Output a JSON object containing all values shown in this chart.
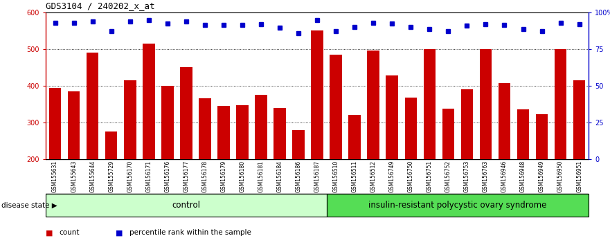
{
  "title": "GDS3104 / 240202_x_at",
  "samples": [
    "GSM155631",
    "GSM155643",
    "GSM155644",
    "GSM155729",
    "GSM156170",
    "GSM156171",
    "GSM156176",
    "GSM156177",
    "GSM156178",
    "GSM156179",
    "GSM156180",
    "GSM156181",
    "GSM156184",
    "GSM156186",
    "GSM156187",
    "GSM156510",
    "GSM156511",
    "GSM156512",
    "GSM156749",
    "GSM156750",
    "GSM156751",
    "GSM156752",
    "GSM156753",
    "GSM156763",
    "GSM156946",
    "GSM156948",
    "GSM156949",
    "GSM156950",
    "GSM156951"
  ],
  "bar_values": [
    395,
    385,
    490,
    275,
    415,
    515,
    400,
    450,
    365,
    345,
    348,
    375,
    340,
    280,
    550,
    485,
    320,
    495,
    428,
    368,
    500,
    338,
    390,
    500,
    408,
    335,
    322,
    500,
    415
  ],
  "dot_values": [
    572,
    572,
    575,
    548,
    575,
    578,
    570,
    575,
    565,
    565,
    565,
    568,
    558,
    542,
    578,
    548,
    560,
    572,
    570,
    560,
    555,
    548,
    563,
    568,
    565,
    555,
    548,
    572,
    568
  ],
  "bar_color": "#cc0000",
  "dot_color": "#0000cc",
  "ylim_left": [
    200,
    600
  ],
  "ylim_right": [
    0,
    100
  ],
  "yticks_left": [
    200,
    300,
    400,
    500,
    600
  ],
  "yticks_right": [
    0,
    25,
    50,
    75,
    100
  ],
  "ytick_labels_right": [
    "0",
    "25",
    "50",
    "75",
    "100%"
  ],
  "grid_values": [
    300,
    400,
    500
  ],
  "control_count": 15,
  "disease_label": "insulin-resistant polycystic ovary syndrome",
  "control_label": "control",
  "disease_state_label": "disease state",
  "legend_count_label": "count",
  "legend_percentile_label": "percentile rank within the sample",
  "bg_color": "#ffffff",
  "control_bg": "#ccffcc",
  "disease_bg": "#55dd55",
  "label_band_color": "#c8c8c8"
}
